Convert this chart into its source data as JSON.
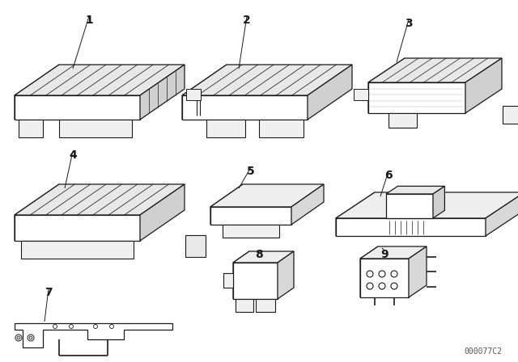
{
  "background_color": "#ffffff",
  "line_color": "#1a1a1a",
  "line_width": 0.9,
  "watermark": "000077C2",
  "watermark_fontsize": 7,
  "label_fontsize": 10
}
